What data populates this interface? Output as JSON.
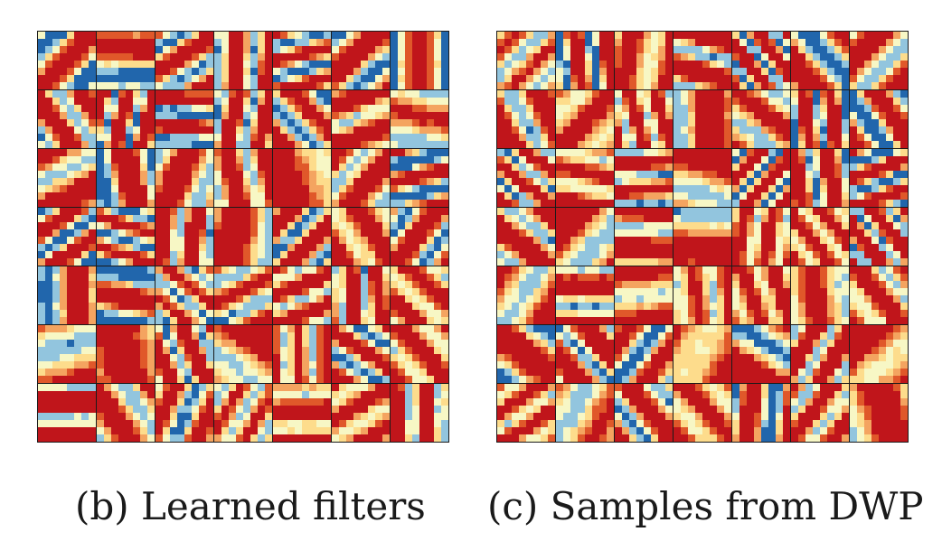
{
  "figure": {
    "panels": [
      {
        "id": "b",
        "caption": "(b) Learned filters",
        "rows": 7,
        "cols": 7,
        "seed": 11
      },
      {
        "id": "c",
        "caption": "(c) Samples from DWP",
        "rows": 7,
        "cols": 7,
        "seed": 37
      }
    ],
    "colormap": [
      "#2166ac",
      "#92c5de",
      "#f7f7c5",
      "#fddc8c",
      "#f4a460",
      "#e0582a",
      "#c0151b"
    ]
  }
}
